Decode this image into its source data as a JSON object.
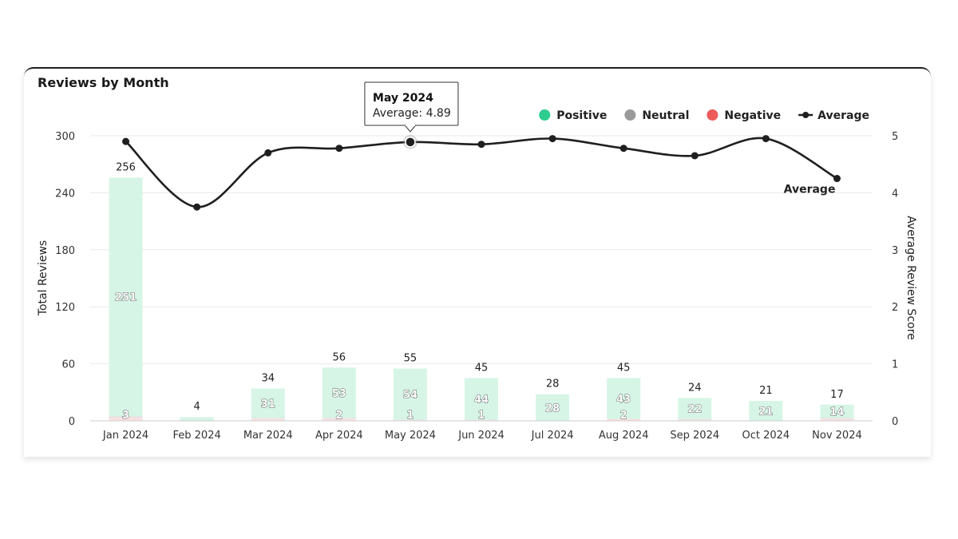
{
  "chart_data": {
    "type": "bar",
    "title": "Reviews by Month",
    "categories": [
      "Jan 2024",
      "Feb 2024",
      "Mar 2024",
      "Apr 2024",
      "May 2024",
      "Jun 2024",
      "Jul 2024",
      "Aug 2024",
      "Sep 2024",
      "Oct 2024",
      "Nov 2024"
    ],
    "series": [
      {
        "name": "Positive",
        "values": [
          251,
          4,
          31,
          53,
          54,
          44,
          28,
          43,
          22,
          21,
          14
        ]
      },
      {
        "name": "Neutral",
        "values": [
          2,
          0,
          1,
          1,
          0,
          0,
          0,
          0,
          1,
          0,
          1
        ]
      },
      {
        "name": "Negative",
        "values": [
          3,
          0,
          2,
          2,
          1,
          1,
          0,
          2,
          1,
          0,
          2
        ]
      }
    ],
    "totals": [
      256,
      4,
      34,
      56,
      55,
      45,
      28,
      45,
      24,
      21,
      17
    ],
    "positive_labels": [
      "251",
      "",
      "31",
      "53",
      "54",
      "44",
      "28",
      "43",
      "22",
      "21",
      "14"
    ],
    "negative_labels": [
      "3",
      "",
      "",
      "2",
      "1",
      "1",
      "",
      "2",
      "",
      "",
      ""
    ],
    "average": {
      "name": "Average",
      "values": [
        4.9,
        3.75,
        4.7,
        4.78,
        4.89,
        4.85,
        4.95,
        4.78,
        4.65,
        4.95,
        4.25
      ]
    },
    "ylabel": "Total Reviews",
    "ylim": [
      0,
      300
    ],
    "yticks": [
      "0",
      "60",
      "120",
      "180",
      "240",
      "300"
    ],
    "y2label": "Average Review Score",
    "y2lim": [
      0,
      5
    ],
    "y2ticks": [
      "0",
      "1",
      "2",
      "3",
      "4",
      "5"
    ],
    "legend": [
      {
        "name": "Positive",
        "color": "#2ecc8f",
        "marker": "circle"
      },
      {
        "name": "Neutral",
        "color": "#9a9a9a",
        "marker": "circle"
      },
      {
        "name": "Negative",
        "color": "#ec5a5a",
        "marker": "circle"
      },
      {
        "name": "Average",
        "color": "#1f1f1f",
        "marker": "line"
      }
    ],
    "legend_position": "top-right",
    "line_end_label": "Average",
    "grid": true,
    "colors": {
      "positive_bar": "#d6f5e6",
      "neutral_bar": "#e3e3e3",
      "negative_bar": "#fde0e0",
      "line": "#1f1f1f"
    },
    "tooltip": {
      "title": "May 2024",
      "text": "Average: 4.89",
      "index": 4
    }
  }
}
